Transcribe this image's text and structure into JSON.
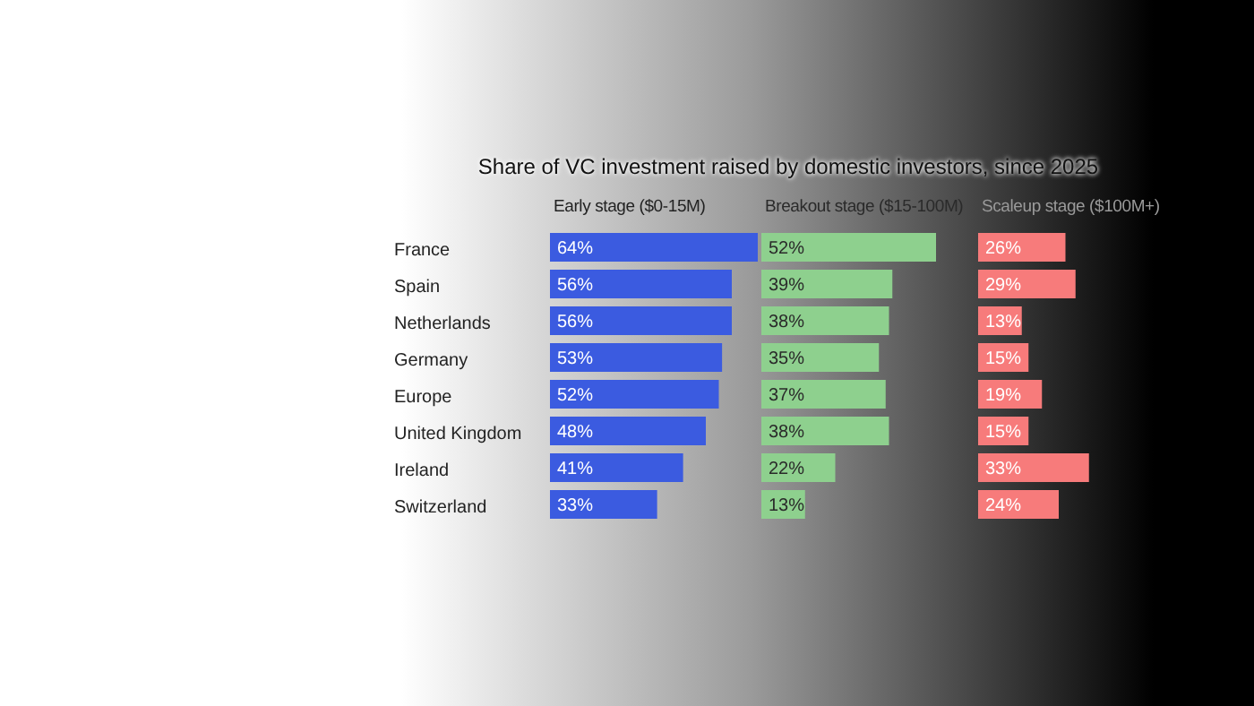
{
  "chart_data": [
    {
      "type": "bar",
      "orientation": "horizontal",
      "title": "Share of VC investment raised by domestic investors, since 2025",
      "subtitle": "Early stage ($0-15M)",
      "categories": [
        "France",
        "Spain",
        "Netherlands",
        "Germany",
        "Europe",
        "United Kingdom",
        "Ireland",
        "Switzerland"
      ],
      "values": [
        64,
        56,
        56,
        53,
        52,
        48,
        41,
        33
      ],
      "color": "#3b5be0",
      "value_labels": [
        "64%",
        "56%",
        "56%",
        "53%",
        "52%",
        "48%",
        "41%",
        "33%"
      ],
      "tick_labels": "y",
      "grid": false,
      "legend": false
    },
    {
      "type": "bar",
      "orientation": "horizontal",
      "subtitle": "Breakout stage ($15-100M)",
      "categories": [
        null,
        null,
        null,
        null,
        null,
        null,
        null,
        null
      ],
      "tick_labels": false,
      "values": [
        52,
        39,
        38,
        35,
        37,
        38,
        22,
        13
      ],
      "color": "#8ed08e",
      "value_labels": [
        "52%",
        "39%",
        "38%",
        "35%",
        "37%",
        "38%",
        "22%",
        "13%"
      ],
      "grid": false,
      "legend": false
    },
    {
      "type": "bar",
      "orientation": "horizontal",
      "subtitle": "Scaleup stage ($100M+)",
      "categories": [
        null,
        null,
        null,
        null,
        null,
        null,
        null,
        null
      ],
      "tick_labels": false,
      "values": [
        26,
        29,
        13,
        15,
        19,
        15,
        33,
        24
      ],
      "color": "#f77b7b",
      "value_labels": [
        "26%",
        "29%",
        "13%",
        "15%",
        "19%",
        "15%",
        "33%",
        "24%"
      ],
      "grid": false,
      "legend": false
    }
  ]
}
